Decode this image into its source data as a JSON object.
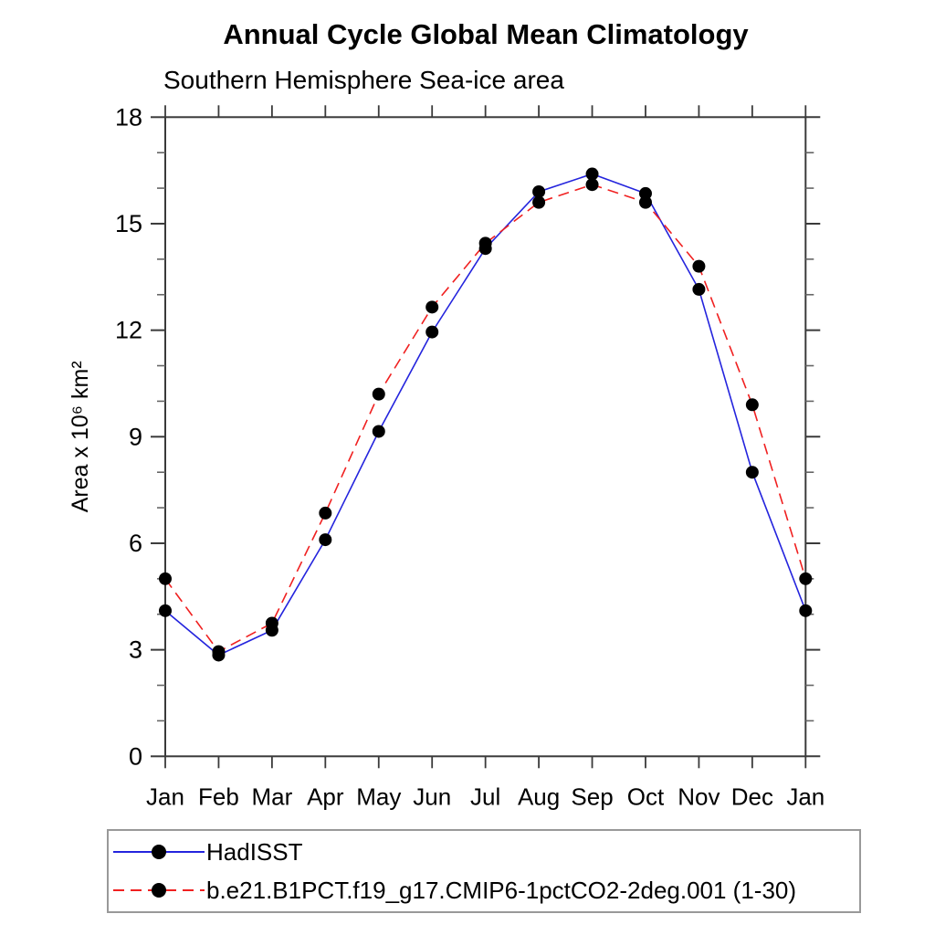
{
  "title": "Annual Cycle Global Mean Climatology",
  "subtitle": "Southern Hemisphere Sea-ice area",
  "chart_data": {
    "type": "line",
    "title": "Annual Cycle Global Mean Climatology",
    "subtitle": "Southern Hemisphere Sea-ice area",
    "xlabel": "",
    "ylabel": "Area x 10⁶ km²",
    "x_categories": [
      "Jan",
      "Feb",
      "Mar",
      "Apr",
      "May",
      "Jun",
      "Jul",
      "Aug",
      "Sep",
      "Oct",
      "Nov",
      "Dec",
      "Jan"
    ],
    "ylim": [
      0,
      18
    ],
    "y_major_ticks": [
      0,
      3,
      6,
      9,
      12,
      15,
      18
    ],
    "y_minor_step": 1,
    "grid": false,
    "legend_position": "bottom",
    "frame_color": "#3a3a3a",
    "minor_tick_color": "#666666",
    "marker_color": "#000000",
    "series": [
      {
        "name": "HadISST",
        "color": "#2424dd",
        "style": "solid",
        "marker": "circle",
        "values": [
          4.1,
          2.85,
          3.55,
          6.1,
          9.15,
          11.95,
          14.3,
          15.9,
          16.4,
          15.85,
          13.15,
          8.0,
          4.1
        ]
      },
      {
        "name": "b.e21.B1PCT.f19_g17.CMIP6-1pctCO2-2deg.001 (1-30)",
        "color": "#f02020",
        "style": "dashed",
        "marker": "circle",
        "values": [
          5.0,
          2.95,
          3.75,
          6.85,
          10.2,
          12.65,
          14.45,
          15.6,
          16.1,
          15.6,
          13.8,
          9.9,
          5.0
        ]
      }
    ]
  }
}
